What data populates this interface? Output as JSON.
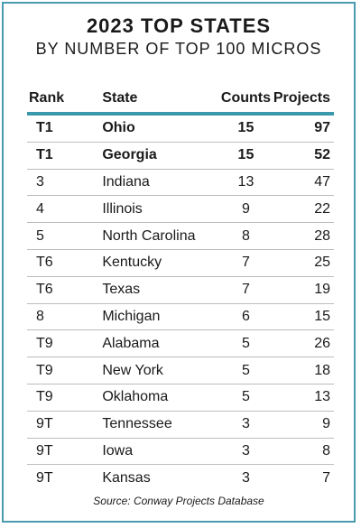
{
  "title": "2023 TOP STATES",
  "subtitle": "BY NUMBER OF TOP 100 MICROS",
  "table": {
    "headers": {
      "rank": "Rank",
      "state": "State",
      "counts": "Counts",
      "projects": "Projects"
    },
    "rows": [
      {
        "rank": "T1",
        "state": "Ohio",
        "counts": "15",
        "projects": "97",
        "bold": true
      },
      {
        "rank": "T1",
        "state": "Georgia",
        "counts": "15",
        "projects": "52",
        "bold": true
      },
      {
        "rank": "3",
        "state": "Indiana",
        "counts": "13",
        "projects": "47",
        "bold": false
      },
      {
        "rank": "4",
        "state": "Illinois",
        "counts": "9",
        "projects": "22",
        "bold": false
      },
      {
        "rank": "5",
        "state": "North Carolina",
        "counts": "8",
        "projects": "28",
        "bold": false
      },
      {
        "rank": "T6",
        "state": "Kentucky",
        "counts": "7",
        "projects": "25",
        "bold": false
      },
      {
        "rank": "T6",
        "state": "Texas",
        "counts": "7",
        "projects": "19",
        "bold": false
      },
      {
        "rank": "8",
        "state": "Michigan",
        "counts": "6",
        "projects": "15",
        "bold": false
      },
      {
        "rank": "T9",
        "state": "Alabama",
        "counts": "5",
        "projects": "26",
        "bold": false
      },
      {
        "rank": "T9",
        "state": "New York",
        "counts": "5",
        "projects": "18",
        "bold": false
      },
      {
        "rank": "T9",
        "state": "Oklahoma",
        "counts": "5",
        "projects": "13",
        "bold": false
      },
      {
        "rank": "9T",
        "state": "Tennessee",
        "counts": "3",
        "projects": "9",
        "bold": false
      },
      {
        "rank": "9T",
        "state": "Iowa",
        "counts": "3",
        "projects": "8",
        "bold": false
      },
      {
        "rank": "9T",
        "state": "Kansas",
        "counts": "3",
        "projects": "7",
        "bold": false
      }
    ]
  },
  "source": "Source: Conway Projects Database",
  "colors": {
    "accent": "#3a98ad",
    "border": "#4a9bb0",
    "divider": "#bcbcbc"
  }
}
